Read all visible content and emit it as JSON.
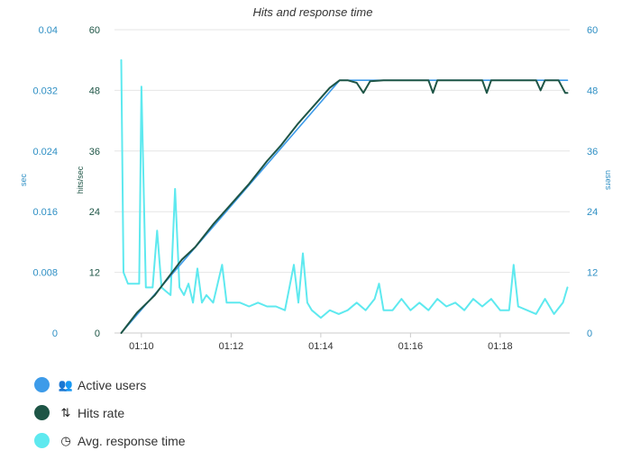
{
  "chart_data": {
    "type": "line",
    "title": "Hits and response time",
    "axes": {
      "sec": {
        "label": "sec",
        "ticks": [
          "0",
          "0.008",
          "0.016",
          "0.024",
          "0.032",
          "0.04"
        ],
        "range": [
          0,
          0.04
        ]
      },
      "hits": {
        "label": "hits/sec",
        "ticks": [
          "0",
          "12",
          "24",
          "36",
          "48",
          "60"
        ],
        "range": [
          0,
          60
        ]
      },
      "users": {
        "label": "users",
        "ticks": [
          "0",
          "12",
          "24",
          "36",
          "48",
          "60"
        ],
        "range": [
          0,
          60
        ]
      }
    },
    "x_ticks": [
      {
        "label": "01:10",
        "minutes": 10
      },
      {
        "label": "01:12",
        "minutes": 12
      },
      {
        "label": "01:14",
        "minutes": 14
      },
      {
        "label": "01:16",
        "minutes": 16
      },
      {
        "label": "01:18",
        "minutes": 18
      }
    ],
    "series": [
      {
        "name": "Active users",
        "color": "#3d9be9",
        "icon": "users-icon",
        "axis": "users",
        "x": [
          9.55,
          14.42,
          19.5
        ],
        "values": [
          0,
          50,
          50
        ]
      },
      {
        "name": "Hits rate",
        "color": "#1e5546",
        "icon": "sort-arrows-icon",
        "axis": "hits",
        "x": [
          9.55,
          9.9,
          10.3,
          10.6,
          10.9,
          11.2,
          11.6,
          12.0,
          12.4,
          12.8,
          13.1,
          13.5,
          13.9,
          14.2,
          14.42,
          14.6,
          14.8,
          14.95,
          15.1,
          15.4,
          16.0,
          16.4,
          16.5,
          16.6,
          17.0,
          17.6,
          17.7,
          17.8,
          18.4,
          18.8,
          18.9,
          19.0,
          19.3,
          19.45,
          19.5
        ],
        "values": [
          0,
          4,
          7.5,
          11,
          14.5,
          17,
          21.5,
          25.5,
          29.5,
          34,
          37,
          41.5,
          45.5,
          48.5,
          50,
          50,
          49.5,
          47.5,
          49.8,
          50,
          50,
          50,
          47.5,
          50,
          50,
          50,
          47.5,
          50,
          50,
          50,
          48,
          50,
          50,
          47.5,
          47.5
        ]
      },
      {
        "name": "Avg. response time",
        "color": "#5ee9ef",
        "icon": "clock-icon",
        "axis": "sec",
        "x": [
          9.55,
          9.6,
          9.7,
          9.8,
          9.95,
          10.0,
          10.1,
          10.25,
          10.35,
          10.45,
          10.55,
          10.65,
          10.75,
          10.85,
          10.95,
          11.05,
          11.15,
          11.25,
          11.35,
          11.45,
          11.6,
          11.8,
          11.9,
          12.0,
          12.2,
          12.4,
          12.6,
          12.8,
          13.0,
          13.2,
          13.4,
          13.5,
          13.6,
          13.7,
          13.8,
          14.0,
          14.2,
          14.4,
          14.6,
          14.8,
          15.0,
          15.2,
          15.3,
          15.4,
          15.6,
          15.8,
          16.0,
          16.2,
          16.4,
          16.6,
          16.8,
          17.0,
          17.2,
          17.4,
          17.6,
          17.8,
          18.0,
          18.2,
          18.3,
          18.4,
          18.6,
          18.8,
          19.0,
          19.2,
          19.4,
          19.5
        ],
        "values": [
          0.036,
          0.008,
          0.0065,
          0.0065,
          0.0065,
          0.0325,
          0.006,
          0.006,
          0.0135,
          0.006,
          0.0055,
          0.005,
          0.019,
          0.006,
          0.005,
          0.0065,
          0.004,
          0.0085,
          0.004,
          0.005,
          0.004,
          0.009,
          0.004,
          0.004,
          0.004,
          0.0035,
          0.004,
          0.0035,
          0.0035,
          0.003,
          0.009,
          0.004,
          0.0105,
          0.004,
          0.003,
          0.002,
          0.003,
          0.0025,
          0.003,
          0.004,
          0.003,
          0.0045,
          0.0065,
          0.003,
          0.003,
          0.0045,
          0.003,
          0.004,
          0.003,
          0.0045,
          0.0035,
          0.004,
          0.003,
          0.0045,
          0.0035,
          0.0045,
          0.003,
          0.003,
          0.009,
          0.0035,
          0.003,
          0.0025,
          0.0045,
          0.0025,
          0.004,
          0.006
        ]
      }
    ],
    "grid": true,
    "legend_position": "bottom-left"
  }
}
